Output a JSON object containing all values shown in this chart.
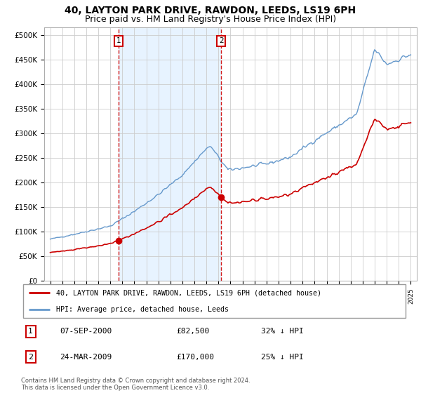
{
  "title": "40, LAYTON PARK DRIVE, RAWDON, LEEDS, LS19 6PH",
  "subtitle": "Price paid vs. HM Land Registry's House Price Index (HPI)",
  "title_fontsize": 10,
  "subtitle_fontsize": 9,
  "ylabel_ticks": [
    "£0",
    "£50K",
    "£100K",
    "£150K",
    "£200K",
    "£250K",
    "£300K",
    "£350K",
    "£400K",
    "£450K",
    "£500K"
  ],
  "ytick_vals": [
    0,
    50000,
    100000,
    150000,
    200000,
    250000,
    300000,
    350000,
    400000,
    450000,
    500000
  ],
  "xlim": [
    1994.5,
    2025.5
  ],
  "ylim": [
    0,
    515000
  ],
  "sale1_date": "07-SEP-2000",
  "sale1_price": 82500,
  "sale1_pct": "32% ↓ HPI",
  "sale1_year": 2000.68,
  "sale2_date": "24-MAR-2009",
  "sale2_price": 170000,
  "sale2_pct": "25% ↓ HPI",
  "sale2_year": 2009.23,
  "legend_label1": "40, LAYTON PARK DRIVE, RAWDON, LEEDS, LS19 6PH (detached house)",
  "legend_label2": "HPI: Average price, detached house, Leeds",
  "footnote": "Contains HM Land Registry data © Crown copyright and database right 2024.\nThis data is licensed under the Open Government Licence v3.0.",
  "red_color": "#cc0000",
  "blue_color": "#6699cc",
  "shade_color": "#ddeeff",
  "bg_color": "#ffffff",
  "grid_color": "#cccccc"
}
